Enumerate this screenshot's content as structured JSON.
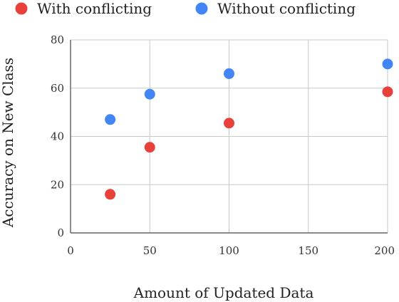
{
  "chart_data": {
    "type": "scatter",
    "title": "",
    "xlabel": "Amount of Updated Data",
    "ylabel": "Accuracy on New Class",
    "xlim": [
      0,
      200
    ],
    "ylim": [
      0,
      80
    ],
    "xticks": [
      0,
      50,
      100,
      150,
      200
    ],
    "yticks": [
      0,
      20,
      40,
      60,
      80
    ],
    "grid": true,
    "legend_position": "top",
    "series": [
      {
        "name": "With conflicting",
        "color": "#e8413a",
        "points": [
          [
            25,
            16
          ],
          [
            50,
            35.5
          ],
          [
            100,
            45.5
          ],
          [
            200,
            58.5
          ]
        ]
      },
      {
        "name": "Without conflicting",
        "color": "#4285f4",
        "points": [
          [
            25,
            47
          ],
          [
            50,
            57.5
          ],
          [
            100,
            66
          ],
          [
            200,
            70
          ]
        ]
      }
    ]
  }
}
